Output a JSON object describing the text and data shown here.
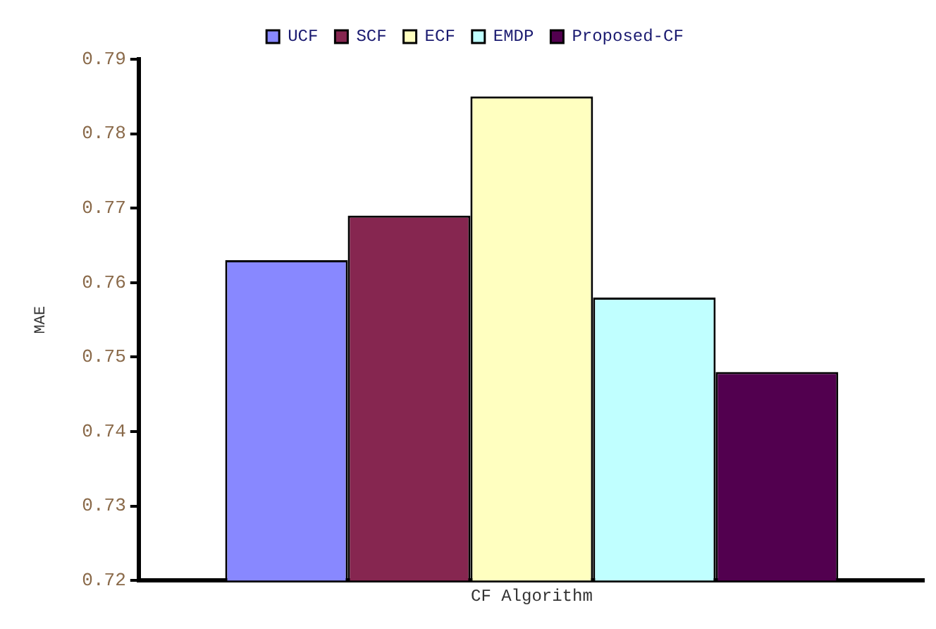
{
  "chart_data": {
    "type": "bar",
    "xlabel": "CF Algorithm",
    "ylabel": "MAE",
    "categories": [
      null
    ],
    "series": [
      {
        "name": "UCF",
        "color": "#8888ff",
        "values": [
          0.763
        ]
      },
      {
        "name": "SCF",
        "color": "#862650",
        "values": [
          0.769
        ]
      },
      {
        "name": "ECF",
        "color": "#ffffc0",
        "values": [
          0.785
        ]
      },
      {
        "name": "EMDP",
        "color": "#c0ffff",
        "values": [
          0.758
        ]
      },
      {
        "name": "Proposed-CF",
        "color": "#52004f",
        "values": [
          0.748
        ]
      }
    ],
    "ylim": [
      0.72,
      0.79
    ],
    "yticks": [
      0.72,
      0.73,
      0.74,
      0.75,
      0.76,
      0.77,
      0.78,
      0.79
    ],
    "grid": false,
    "legend": "top"
  }
}
